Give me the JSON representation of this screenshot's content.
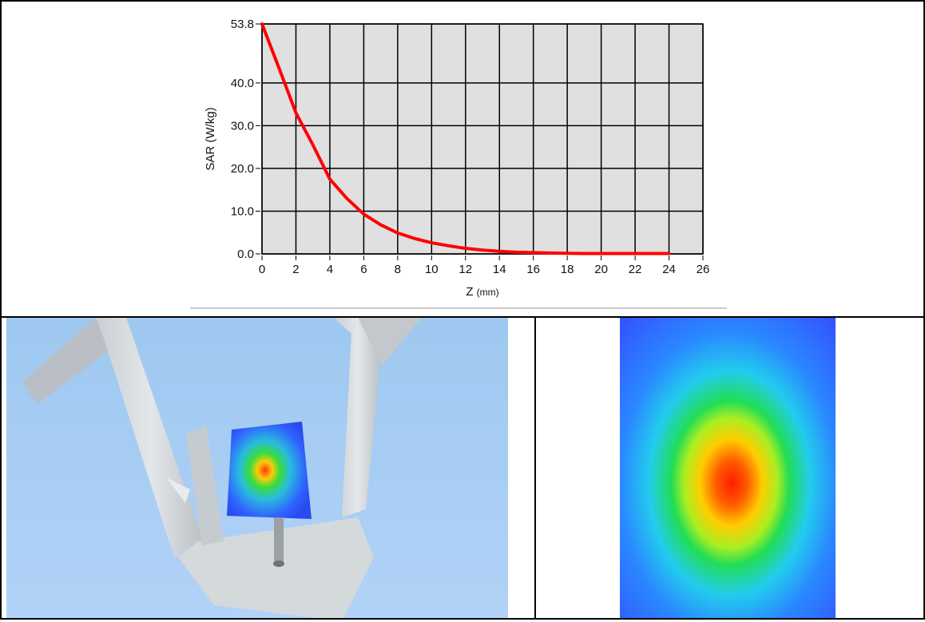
{
  "chart_data": {
    "type": "line",
    "title": "",
    "xlabel": "Z",
    "xlabel_unit": "(mm)",
    "ylabel": "SAR (W/kg)",
    "xlim": [
      0,
      26
    ],
    "ylim": [
      0,
      53.8
    ],
    "x_ticks": [
      0,
      2,
      4,
      6,
      8,
      10,
      12,
      14,
      16,
      18,
      20,
      22,
      24,
      26
    ],
    "y_ticks": [
      0.0,
      10.0,
      20.0,
      30.0,
      40.0,
      53.8
    ],
    "y_tick_labels": [
      "0.0",
      "10.0",
      "20.0",
      "30.0",
      "40.0",
      "53.8"
    ],
    "grid": true,
    "series": [
      {
        "color": "#ff0000",
        "x": [
          0,
          1,
          2,
          3,
          4,
          5,
          6,
          7,
          8,
          9,
          10,
          11,
          12,
          13,
          14,
          15,
          16,
          17,
          18,
          19,
          20,
          21,
          22,
          23,
          24
        ],
        "y": [
          53.8,
          43.5,
          33.0,
          25.5,
          17.5,
          13.0,
          9.3,
          6.8,
          4.9,
          3.6,
          2.6,
          1.9,
          1.3,
          0.9,
          0.6,
          0.4,
          0.3,
          0.2,
          0.15,
          0.1,
          0.1,
          0.1,
          0.1,
          0.1,
          0.1
        ]
      }
    ]
  },
  "colors": {
    "plot_bg": "#e0e0e0",
    "grid": "#000000",
    "line": "#ff0000",
    "scene_bg": "#a8cdf7",
    "heat_blue": "#3355ff",
    "heat_red": "#ff2200"
  },
  "images": {
    "left": "3d-scan-phantom-view",
    "right": "sar-heat-map-2d"
  }
}
